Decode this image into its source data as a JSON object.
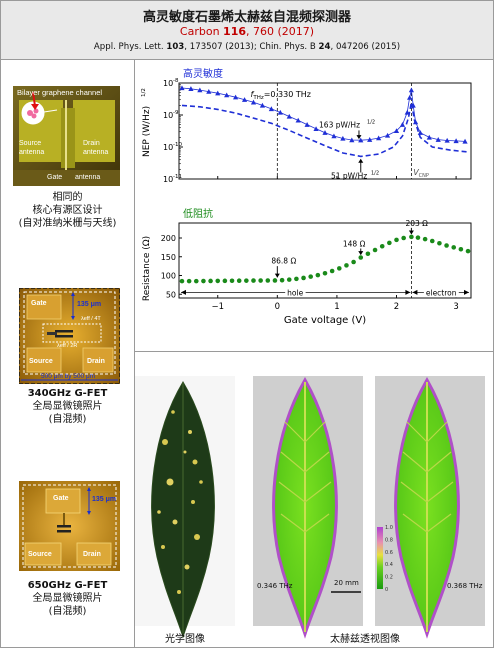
{
  "title": {
    "line1": "高灵敏度石墨烯太赫兹自混频探测器",
    "line2_prefix": "Carbon ",
    "line2_vol": "116",
    "line2_rest": ", 760 (2017)",
    "line3_a": "Appl. Phys. Lett. ",
    "line3_vol1": "103",
    "line3_b": ", 173507 (2013); Chin. Phys. B ",
    "line3_vol2": "24",
    "line3_c": ", 047206 (2015)"
  },
  "left": {
    "device1": {
      "channel_label": "Bilayer graphene channel",
      "source_label_1": "Source",
      "source_label_2": "antenna",
      "drain_label_1": "Drain",
      "drain_label_2": "antenna",
      "gate_label": "Gate",
      "gate_label_2": "antenna",
      "caption": [
        "相同的",
        "核心有源区设计",
        "(自对准纳米栅与天线)"
      ]
    },
    "device2": {
      "gate": "Gate",
      "size": "135 μm",
      "lambda_t": "λeff / 4T",
      "lambda_r": "λeff / 2R",
      "source": "Source",
      "drain": "Drain",
      "scale": "500 μm by 500 μm",
      "caption_title": "340GHz G-FET",
      "caption": [
        "全局显微镜照片",
        "(自混频)"
      ]
    },
    "device3": {
      "gate": "Gate",
      "size": "135 μm",
      "source": "Source",
      "drain": "Drain",
      "caption_title": "650GHz G-FET",
      "caption": [
        "全局显微镜照片",
        "(自混频)"
      ]
    }
  },
  "chart_data": [
    {
      "type": "line",
      "title": "高灵敏度",
      "ylabel": "NEP (W/Hz^1/2)",
      "yscale": "log",
      "ylim": [
        1e-11,
        1e-08
      ],
      "xlim": [
        -1.65,
        3.25
      ],
      "x_ticks": [
        -1,
        0,
        1,
        2,
        3
      ],
      "y_tick_labels": [
        "10",
        "10",
        "10",
        "10"
      ],
      "y_tick_exps": [
        "-8",
        "-9",
        "-10",
        "-11"
      ],
      "annotations": {
        "freq": "f",
        "freq_sub": "THz",
        "freq_val": "=0.330 THz",
        "val1": "163 pW/Hz",
        "val1_sup": "1/2",
        "val2": "51 pW/Hz",
        "val2_sup": "1/2",
        "vcnp": "V",
        "vcnp_sub": "CNP"
      },
      "series": [
        {
          "color": "#1f2fd6",
          "marker": "triangle",
          "x": [
            -1.6,
            -1.45,
            -1.3,
            -1.15,
            -1.0,
            -0.85,
            -0.7,
            -0.55,
            -0.4,
            -0.25,
            -0.1,
            0.05,
            0.2,
            0.35,
            0.5,
            0.65,
            0.8,
            0.95,
            1.1,
            1.25,
            1.4,
            1.55,
            1.7,
            1.85,
            2.0,
            2.1,
            2.18,
            2.22,
            2.25,
            2.28,
            2.32,
            2.4,
            2.55,
            2.7,
            2.85,
            3.0,
            3.15
          ],
          "y": [
            7e-09,
            6.6e-09,
            6e-09,
            5.4e-09,
            4.8e-09,
            4.2e-09,
            3.6e-09,
            3e-09,
            2.5e-09,
            2e-09,
            1.55e-09,
            1.2e-09,
            9e-10,
            6.8e-10,
            5e-10,
            3.7e-10,
            2.8e-10,
            2.2e-10,
            1.85e-10,
            1.65e-10,
            1.63e-10,
            1.7e-10,
            1.9e-10,
            2.3e-10,
            3.2e-10,
            5e-10,
            1.2e-09,
            3.5e-09,
            6e-09,
            2e-09,
            6e-10,
            2.8e-10,
            2e-10,
            1.7e-10,
            1.6e-10,
            1.55e-10,
            1.5e-10
          ]
        },
        {
          "color": "#1f2fd6",
          "style": "dashed",
          "x": [
            -1.6,
            -1.3,
            -1.0,
            -0.7,
            -0.4,
            -0.1,
            0.2,
            0.5,
            0.8,
            1.1,
            1.4,
            1.7,
            1.95,
            2.1,
            2.2,
            2.25,
            2.3,
            2.4,
            2.6,
            2.9,
            3.2
          ],
          "y": [
            2e-09,
            1.8e-09,
            1.5e-09,
            1.15e-09,
            8e-10,
            5.5e-10,
            3.3e-10,
            1.9e-10,
            1.1e-10,
            6.5e-11,
            5.1e-11,
            6e-11,
            1e-10,
            2.2e-10,
            8e-10,
            2.5e-09,
            7e-10,
            2e-10,
            1e-10,
            8e-11,
            7e-11
          ]
        }
      ]
    },
    {
      "type": "scatter",
      "title": "低阻抗",
      "xlabel": "Gate voltage (V)",
      "ylabel": "Resistance (Ω)",
      "xlim": [
        -1.65,
        3.25
      ],
      "ylim": [
        40,
        240
      ],
      "x_ticks": [
        -1,
        0,
        1,
        2,
        3
      ],
      "y_ticks": [
        50,
        100,
        150,
        200
      ],
      "annotations": {
        "r1": "86.8 Ω",
        "r2": "148 Ω",
        "r3": "203 Ω",
        "hole": "hole",
        "electron": "electron"
      },
      "series": [
        {
          "color": "#1a8a1a",
          "x": [
            -1.6,
            -1.48,
            -1.36,
            -1.24,
            -1.12,
            -1.0,
            -0.88,
            -0.76,
            -0.64,
            -0.52,
            -0.4,
            -0.28,
            -0.16,
            -0.04,
            0.08,
            0.2,
            0.32,
            0.44,
            0.56,
            0.68,
            0.8,
            0.92,
            1.04,
            1.16,
            1.28,
            1.4,
            1.52,
            1.64,
            1.76,
            1.88,
            2.0,
            2.12,
            2.25,
            2.36,
            2.48,
            2.6,
            2.72,
            2.84,
            2.96,
            3.08,
            3.2
          ],
          "y": [
            85,
            85,
            85,
            85.2,
            85.4,
            85.6,
            85.8,
            86,
            86.1,
            86.3,
            86.5,
            86.6,
            86.7,
            86.8,
            87.5,
            89,
            91,
            93.5,
            97,
            101,
            106,
            112,
            119,
            127,
            136,
            148,
            158,
            168,
            178,
            187,
            195,
            200,
            203,
            201,
            197,
            192,
            186,
            180,
            175,
            170,
            165
          ]
        }
      ]
    }
  ],
  "images": {
    "optical_caption": "光学图像",
    "thz_caption": "太赫兹透视图像",
    "freq1": "0.346 THz",
    "freq2": "0.368 THz",
    "scale": "20 mm",
    "colorbar_ticks": [
      "0",
      "0.2",
      "0.4",
      "0.6",
      "0.8",
      "1.0"
    ]
  }
}
